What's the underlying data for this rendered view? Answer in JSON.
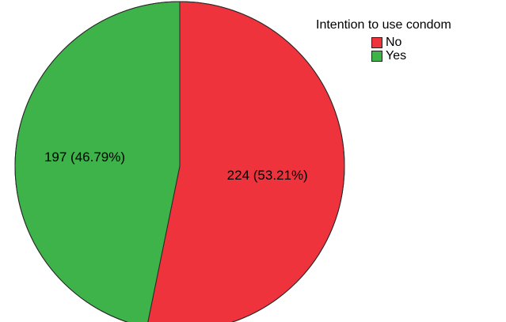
{
  "chart_data": {
    "type": "pie",
    "legend_title": "Intention to use condom",
    "legend_position": "top-right",
    "slices": [
      {
        "name": "No",
        "value": 224,
        "percent": 53.21,
        "label": "224 (53.21%)",
        "color": "#ef333d"
      },
      {
        "name": "Yes",
        "value": 197,
        "percent": 46.79,
        "label": "197 (46.79%)",
        "color": "#3db34a"
      }
    ]
  }
}
